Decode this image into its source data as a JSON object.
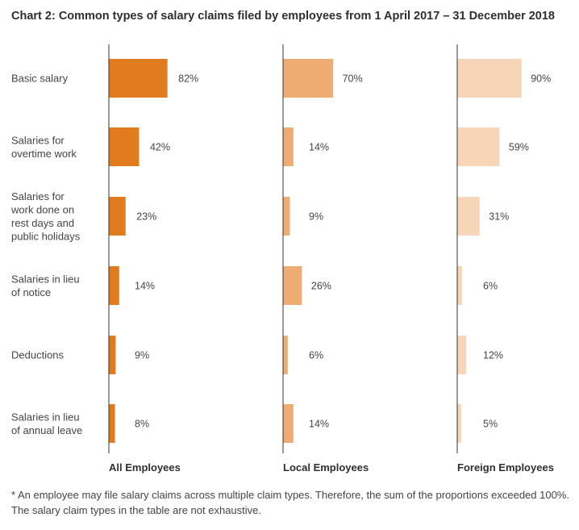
{
  "title": "Chart 2:  Common types of salary claims filed by employees from 1 April 2017 –  31 December 2018",
  "footnote": "* An employee may file salary claims across multiple claim types. Therefore, the sum of the proportions exceeded 100%. The salary claim types in the table are not exhaustive.",
  "chart_data": {
    "type": "bar",
    "orientation": "horizontal",
    "categories": [
      [
        "Basic salary"
      ],
      [
        "Salaries for",
        "overtime work"
      ],
      [
        "Salaries for",
        "work done on",
        "rest days and",
        "public holidays"
      ],
      [
        "Salaries in lieu",
        "of notice"
      ],
      [
        "Deductions"
      ],
      [
        "Salaries in lieu",
        "of annual leave"
      ]
    ],
    "value_suffix": "%",
    "xlim": [
      0,
      100
    ],
    "grid": false,
    "series": [
      {
        "name": "All Employees",
        "color": "#e07b20",
        "values": [
          82,
          42,
          23,
          14,
          9,
          8
        ]
      },
      {
        "name": "Local Employees",
        "color": "#efac72",
        "values": [
          70,
          14,
          9,
          26,
          6,
          14
        ]
      },
      {
        "name": "Foreign Employees",
        "color": "#f7d6b7",
        "values": [
          90,
          59,
          31,
          6,
          12,
          5
        ]
      }
    ],
    "axis_line_color": "#333333"
  }
}
